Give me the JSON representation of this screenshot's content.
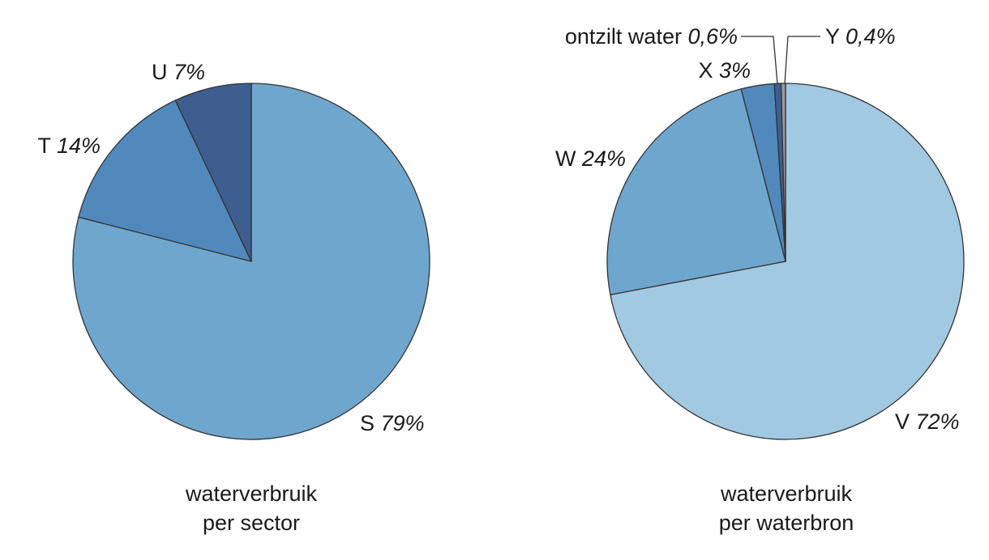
{
  "chart_data": [
    {
      "type": "pie",
      "caption_line1": "waterverbruik",
      "caption_line2": "per sector",
      "slices": [
        {
          "label": "S",
          "value": 79,
          "percent_text": "79%",
          "color": "#6fa6ce"
        },
        {
          "label": "T",
          "value": 14,
          "percent_text": "14%",
          "color": "#5189bd"
        },
        {
          "label": "U",
          "value": 7,
          "percent_text": "7%",
          "color": "#3e5e90"
        }
      ]
    },
    {
      "type": "pie",
      "caption_line1": "waterverbruik",
      "caption_line2": "per waterbron",
      "slices": [
        {
          "label": "V",
          "value": 72,
          "percent_text": "72%",
          "color": "#a2c9e2"
        },
        {
          "label": "W",
          "value": 24,
          "percent_text": "24%",
          "color": "#6fa6ce"
        },
        {
          "label": "X",
          "value": 3,
          "percent_text": "3%",
          "color": "#5189bd"
        },
        {
          "label": "ontzilt water",
          "value": 0.6,
          "percent_text": "0,6%",
          "color": "#3e5e90"
        },
        {
          "label": "Y",
          "value": 0.4,
          "percent_text": "0,4%",
          "color": "#9a9a9a"
        }
      ]
    }
  ],
  "colors": {
    "outline": "#333333",
    "text": "#1a1a1a"
  }
}
